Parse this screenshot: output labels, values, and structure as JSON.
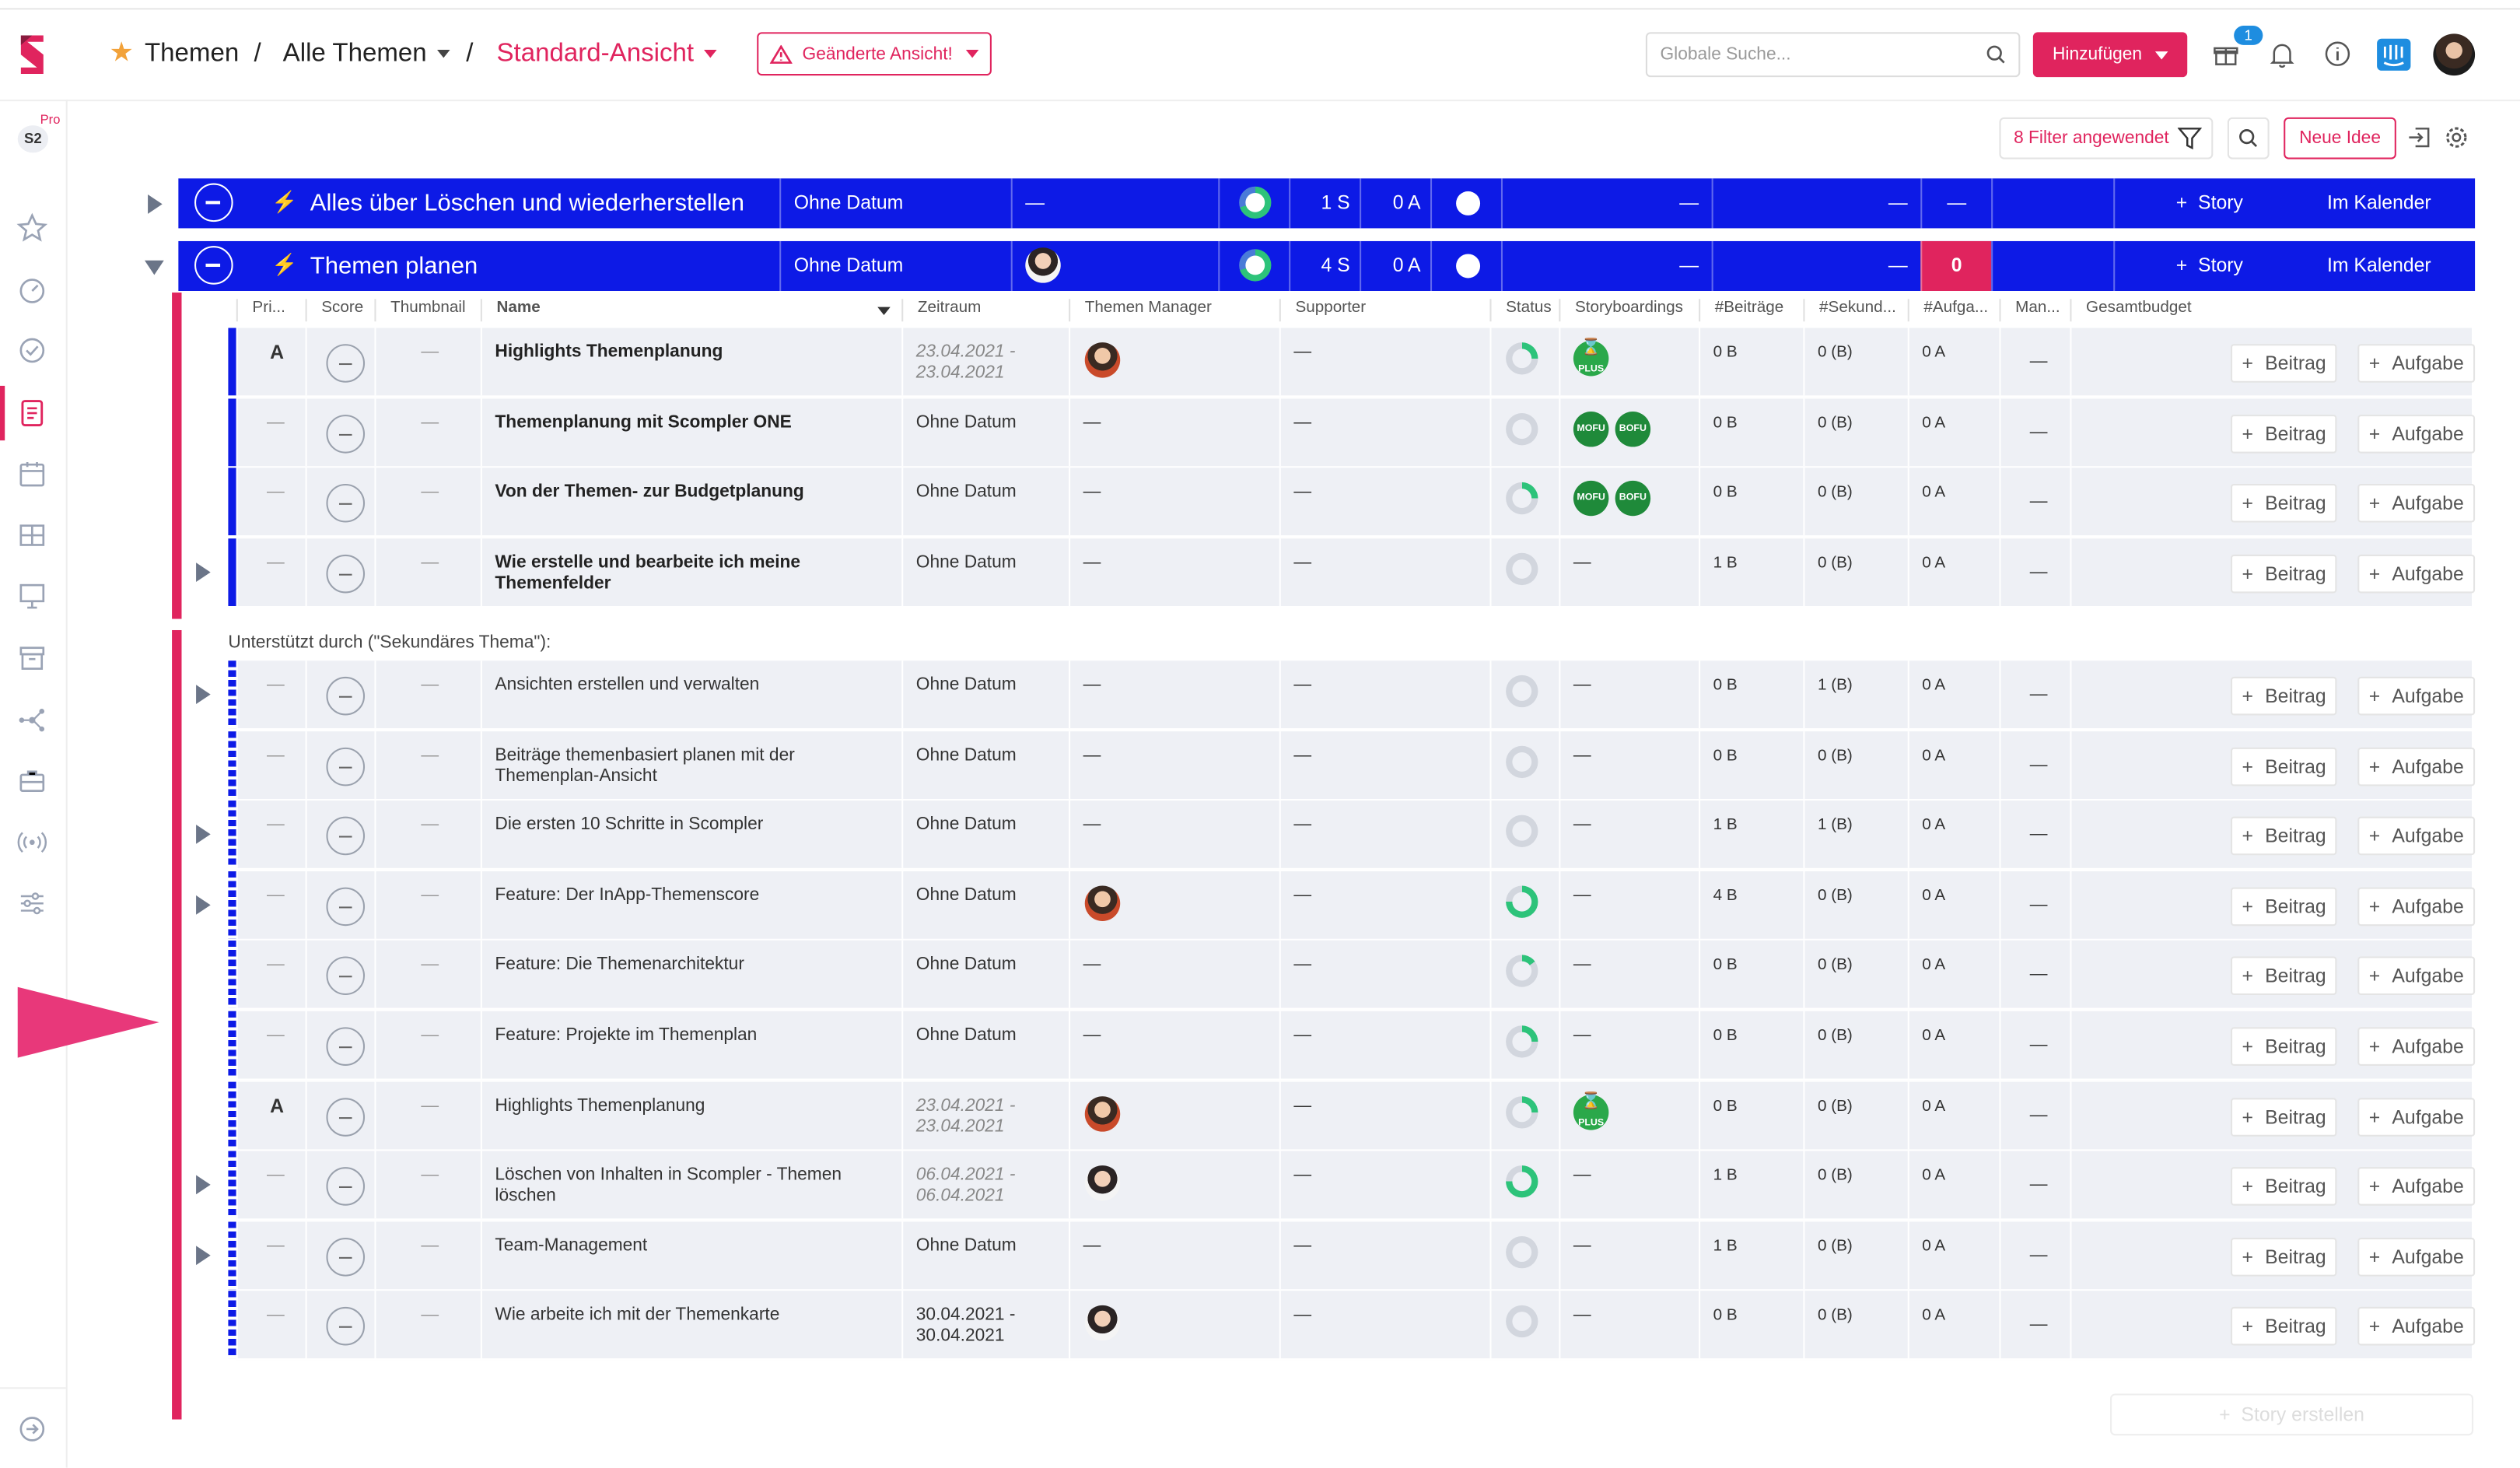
{
  "header": {
    "crumbs": [
      "Themen",
      "Alle Themen",
      "Standard-Ansicht"
    ],
    "separator": "/",
    "changed_view": "Geänderte Ansicht!",
    "search_placeholder": "Globale Suche...",
    "add_label": "Hinzufügen",
    "notification_count": "1"
  },
  "workspace": {
    "code": "S2",
    "plan": "Pro"
  },
  "toolbar": {
    "filter_label": "8 Filter angewendet",
    "new_idea": "Neue Idee"
  },
  "topics": [
    {
      "title": "Alles über Löschen und wiederherstellen",
      "date": "Ohne Datum",
      "manager": "—",
      "stories": "1 S",
      "tasks": "0 A",
      "dash1": "—",
      "dash2": "—",
      "count": "—",
      "story_label": "Story",
      "calendar_label": "Im Kalender"
    },
    {
      "title": "Themen planen",
      "date": "Ohne Datum",
      "stories": "4 S",
      "tasks": "0 A",
      "dash1": "—",
      "dash2": "—",
      "count": "0",
      "story_label": "Story",
      "calendar_label": "Im Kalender"
    }
  ],
  "columns": [
    "Pri...",
    "Score",
    "Thumbnail",
    "Name",
    "Zeitraum",
    "Themen Manager",
    "Supporter",
    "Status",
    "Storyboardings",
    "#Beiträge",
    "#Sekund...",
    "#Aufga...",
    "Man...",
    "Gesamtbudget"
  ],
  "dash": "—",
  "buttons": {
    "beitrag": "Beitrag",
    "aufgabe": "Aufgabe",
    "create_story": "Story erstellen"
  },
  "primary_rows": [
    {
      "priority": "A",
      "name": "Highlights Themenplanung",
      "date1": "23.04.2021 -",
      "date2": "23.04.2021",
      "manager": "avatar",
      "badges": [
        "PLUS"
      ],
      "beitraege": "0 B",
      "sekundaer": "0 (B)",
      "aufgaben": "0 A",
      "status": 0.25
    },
    {
      "priority": "",
      "name": "Themenplanung mit Scompler ONE",
      "date1": "Ohne Datum",
      "date2": "",
      "manager": "",
      "badges": [
        "MOFU",
        "BOFU"
      ],
      "beitraege": "0 B",
      "sekundaer": "0 (B)",
      "aufgaben": "0 A",
      "status": 0
    },
    {
      "priority": "",
      "name": "Von der Themen- zur Budgetplanung",
      "date1": "Ohne Datum",
      "date2": "",
      "manager": "",
      "badges": [
        "MOFU",
        "BOFU"
      ],
      "beitraege": "0 B",
      "sekundaer": "0 (B)",
      "aufgaben": "0 A",
      "status": 0.25
    },
    {
      "priority": "",
      "name": "Wie erstelle und bearbeite ich meine Themenfelder",
      "date1": "Ohne Datum",
      "date2": "",
      "manager": "",
      "badges": [],
      "beitraege": "1 B",
      "sekundaer": "0 (B)",
      "aufgaben": "0 A",
      "status": 0
    }
  ],
  "secondary_caption": "Unterstützt durch (\"Sekundäres Thema\"):",
  "secondary_rows": [
    {
      "priority": "",
      "name": "Ansichten erstellen und verwalten",
      "date1": "Ohne Datum",
      "date2": "",
      "manager": "",
      "badges": [],
      "beitraege": "0 B",
      "sekundaer": "1 (B)",
      "aufgaben": "0 A",
      "status": 0
    },
    {
      "priority": "",
      "name": "Beiträge themenbasiert planen mit der Themenplan-Ansicht",
      "date1": "Ohne Datum",
      "date2": "",
      "manager": "",
      "badges": [],
      "beitraege": "0 B",
      "sekundaer": "0 (B)",
      "aufgaben": "0 A",
      "status": 0
    },
    {
      "priority": "",
      "name": "Die ersten 10 Schritte in Scompler",
      "date1": "Ohne Datum",
      "date2": "",
      "manager": "",
      "badges": [],
      "beitraege": "1 B",
      "sekundaer": "1 (B)",
      "aufgaben": "0 A",
      "status": 0
    },
    {
      "priority": "",
      "name": "Feature: Der InApp-Themenscore",
      "date1": "Ohne Datum",
      "date2": "",
      "manager": "avatar",
      "badges": [],
      "beitraege": "4 B",
      "sekundaer": "0 (B)",
      "aufgaben": "0 A",
      "status": 0.75
    },
    {
      "priority": "",
      "name": "Feature: Die Themenarchitektur",
      "date1": "Ohne Datum",
      "date2": "",
      "manager": "",
      "badges": [],
      "beitraege": "0 B",
      "sekundaer": "0 (B)",
      "aufgaben": "0 A",
      "status": 0.15
    },
    {
      "priority": "",
      "name": "Feature: Projekte im Themenplan",
      "date1": "Ohne Datum",
      "date2": "",
      "manager": "",
      "badges": [],
      "beitraege": "0 B",
      "sekundaer": "0 (B)",
      "aufgaben": "0 A",
      "status": 0.25
    },
    {
      "priority": "A",
      "name": "Highlights Themenplanung",
      "date1": "23.04.2021 -",
      "date2": "23.04.2021",
      "manager": "avatar",
      "badges": [
        "PLUS"
      ],
      "beitraege": "0 B",
      "sekundaer": "0 (B)",
      "aufgaben": "0 A",
      "status": 0.25
    },
    {
      "priority": "",
      "name": "Löschen von Inhalten in Scompler - Themen löschen",
      "date1": "06.04.2021 -",
      "date2": "06.04.2021",
      "manager": "avatar-light",
      "badges": [],
      "beitraege": "1 B",
      "sekundaer": "0 (B)",
      "aufgaben": "0 A",
      "status": 0.75
    },
    {
      "priority": "",
      "name": "Team-Management",
      "date1": "Ohne Datum",
      "date2": "",
      "manager": "",
      "badges": [],
      "beitraege": "1 B",
      "sekundaer": "0 (B)",
      "aufgaben": "0 A",
      "status": 0
    },
    {
      "priority": "",
      "name": "Wie arbeite ich mit der Themenkarte",
      "date1": "30.04.2021 -",
      "date2": "30.04.2021",
      "manager": "avatar-light",
      "badges": [],
      "beitraege": "0 B",
      "sekundaer": "0 (B)",
      "aufgaben": "0 A",
      "status": 0
    }
  ],
  "colors": {
    "accent": "#e0245e",
    "topic_blue": "#0d1ae6",
    "row_bg": "#eef0f5",
    "status_green": "#2dc37a"
  },
  "icons": [
    "scompler-logo",
    "star-icon",
    "gauge-icon",
    "check-circle-icon",
    "document-icon",
    "calendar-icon",
    "grid-icon",
    "presentation-icon",
    "archive-icon",
    "network-icon",
    "briefcase-icon",
    "broadcast-icon",
    "sliders-icon",
    "arrow-circle-icon",
    "filter-icon",
    "search-icon",
    "export-icon",
    "gear-icon",
    "bell-icon",
    "info-icon",
    "gift-icon"
  ]
}
